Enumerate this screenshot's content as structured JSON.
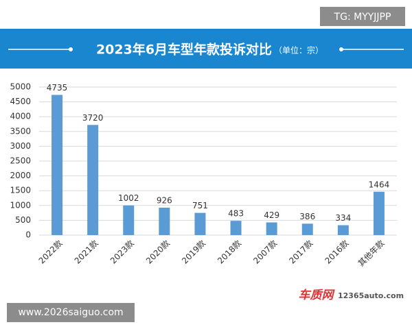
{
  "chart_data": {
    "type": "bar",
    "title": "2023年6月车型年款投诉对比",
    "subtitle": "（单位：宗）",
    "categories": [
      "2022款",
      "2021款",
      "2023款",
      "2020款",
      "2019款",
      "2018款",
      "2007款",
      "2017款",
      "2016款",
      "其他年款"
    ],
    "values": [
      4735,
      3720,
      1002,
      926,
      751,
      483,
      429,
      386,
      334,
      1464
    ],
    "color": "#5b9bd5",
    "ylim": [
      0,
      5000
    ],
    "yticks": [
      0,
      500,
      1000,
      1500,
      2000,
      2500,
      3000,
      3500,
      4000,
      4500,
      5000
    ],
    "grid": true
  },
  "watermarks": [
    "TG: MYYJJPP",
    "www.2026saiguo.com"
  ],
  "logo": {
    "name": "车质网",
    "url": "12365auto.com"
  }
}
